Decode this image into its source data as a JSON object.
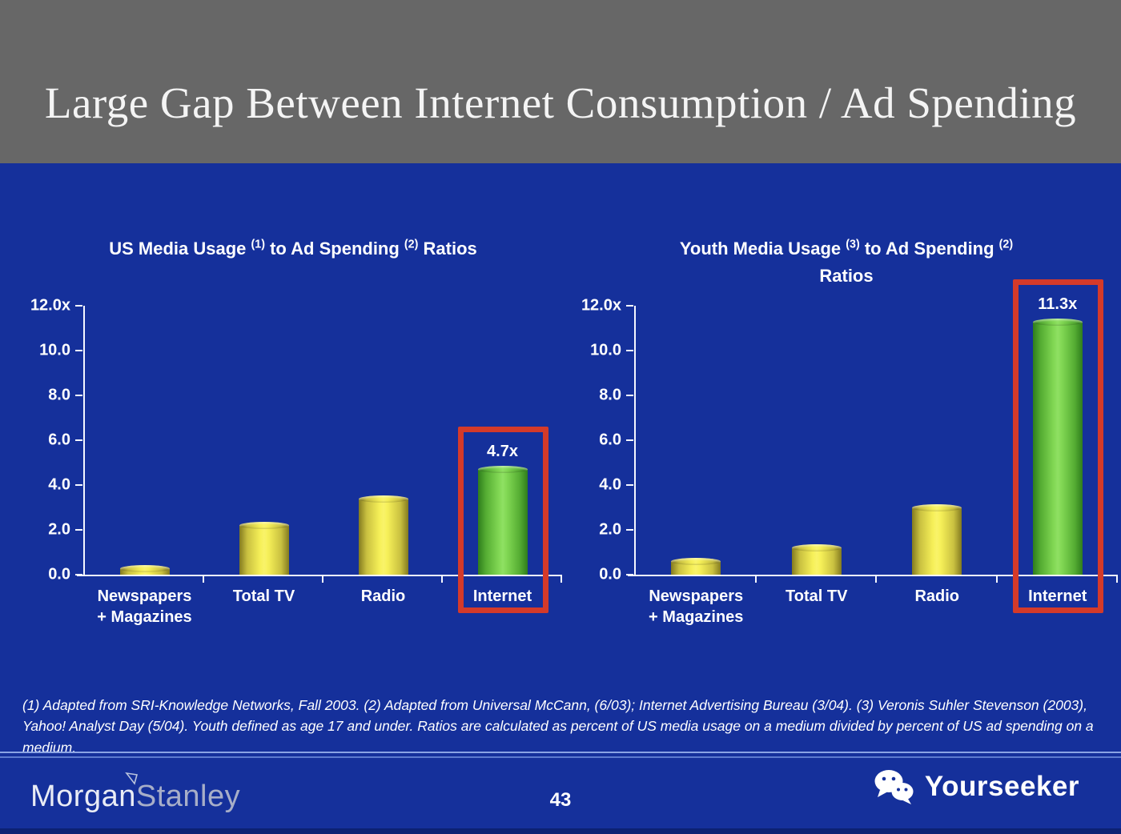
{
  "slide": {
    "title": "Large Gap Between Internet Consumption / Ad Spending",
    "page_number": "43",
    "footnote": "(1) Adapted from SRI-Knowledge Networks, Fall 2003.  (2) Adapted from Universal McCann, (6/03); Internet Advertising Bureau (3/04). (3) Veronis Suhler Stevenson (2003), Yahoo! Analyst Day (5/04).  Youth defined as age 17 and under.  Ratios are calculated as percent of US media usage on a medium divided by percent of US ad spending on a medium.",
    "brand": {
      "name": "Morgan Stanley",
      "part1": "Morgan",
      "part2": "Stanley"
    },
    "watermark": {
      "label": "Yourseeker",
      "icon": "wechat-icon"
    }
  },
  "colors": {
    "header_bg": "#676767",
    "slide_bg": "#15309b",
    "bar_yellow": "#f6f058",
    "bar_green": "#82d854",
    "highlight_red": "#d43a2a",
    "axis_white": "#f5f7ff",
    "divider_blue": "#8ba4e4"
  },
  "chart_data": [
    {
      "type": "bar",
      "title": "US Media Usage (1) to Ad Spending (2) Ratios",
      "title_rich": [
        {
          "text": "US Media Usage "
        },
        {
          "sup": "(1)"
        },
        {
          "text": " to Ad Spending "
        },
        {
          "sup": "(2)"
        },
        {
          "text": " Ratios"
        }
      ],
      "categories": [
        "Newspapers + Magazines",
        "Total TV",
        "Radio",
        "Internet"
      ],
      "category_lines": [
        [
          "Newspapers",
          "+ Magazines"
        ],
        [
          "Total TV"
        ],
        [
          "Radio"
        ],
        [
          "Internet"
        ]
      ],
      "values": [
        0.3,
        2.2,
        3.4,
        4.7
      ],
      "value_labels": [
        "",
        "",
        "",
        "4.7x"
      ],
      "bar_colors": [
        "yellow",
        "yellow",
        "yellow",
        "green"
      ],
      "highlight_index": 3,
      "xlabel": "",
      "ylabel": "",
      "ylim": [
        0,
        12
      ],
      "yticks": [
        0,
        2,
        4,
        6,
        8,
        10,
        12
      ],
      "ytick_labels": [
        "0.0",
        "2.0",
        "4.0",
        "6.0",
        "8.0",
        "10.0",
        "12.0x"
      ],
      "grid": false,
      "legend": false
    },
    {
      "type": "bar",
      "title": "Youth Media Usage (3) to Ad Spending (2) Ratios",
      "title_rich": [
        {
          "text": "Youth Media Usage "
        },
        {
          "sup": "(3)"
        },
        {
          "text": " to Ad Spending "
        },
        {
          "sup": "(2)"
        },
        {
          "break": true
        },
        {
          "text": "Ratios"
        }
      ],
      "categories": [
        "Newspapers + Magazines",
        "Total TV",
        "Radio",
        "Internet"
      ],
      "category_lines": [
        [
          "Newspapers",
          "+ Magazines"
        ],
        [
          "Total TV"
        ],
        [
          "Radio"
        ],
        [
          "Internet"
        ]
      ],
      "values": [
        0.6,
        1.2,
        3.0,
        11.3
      ],
      "value_labels": [
        "",
        "",
        "",
        "11.3x"
      ],
      "bar_colors": [
        "yellow",
        "yellow",
        "yellow",
        "green"
      ],
      "highlight_index": 3,
      "xlabel": "",
      "ylabel": "",
      "ylim": [
        0,
        12
      ],
      "yticks": [
        0,
        2,
        4,
        6,
        8,
        10,
        12
      ],
      "ytick_labels": [
        "0.0",
        "2.0",
        "4.0",
        "6.0",
        "8.0",
        "10.0",
        "12.0x"
      ],
      "grid": false,
      "legend": false
    }
  ]
}
